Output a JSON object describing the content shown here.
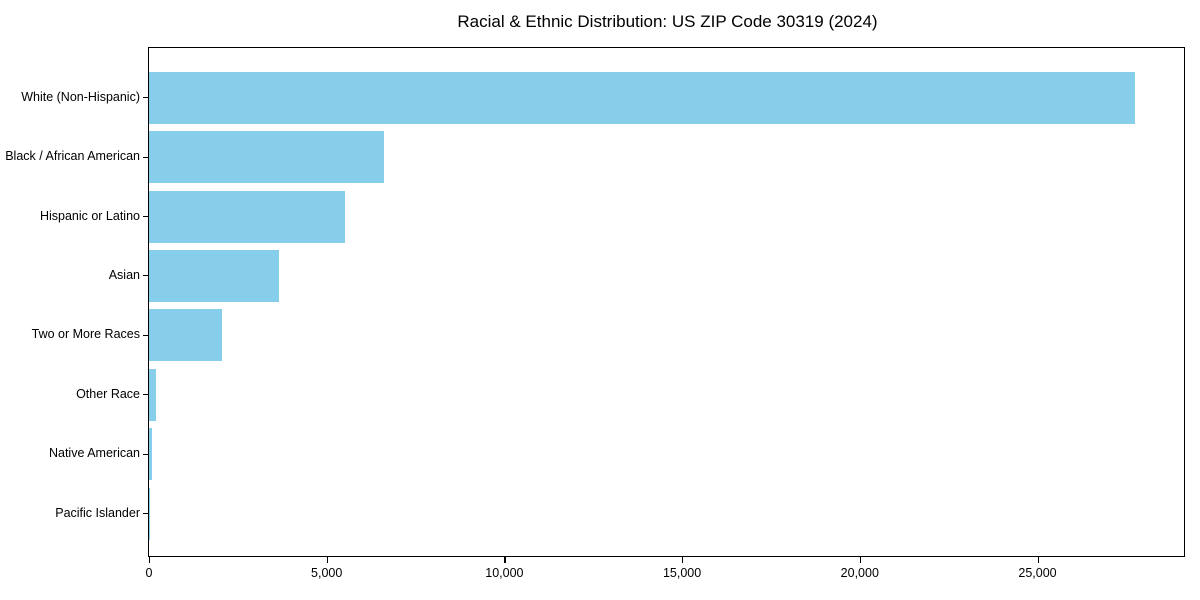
{
  "title": "Racial & Ethnic Distribution: US ZIP Code 30319 (2024)",
  "colors": {
    "bar": "#87CEEB",
    "axis": "#000000",
    "background": "#ffffff",
    "text": "#000000"
  },
  "chart_data": {
    "type": "bar",
    "orientation": "horizontal",
    "title": "Racial & Ethnic Distribution: US ZIP Code 30319 (2024)",
    "categories": [
      "White (Non-Hispanic)",
      "Black / African American",
      "Hispanic or Latino",
      "Asian",
      "Two or More Races",
      "Other Race",
      "Native American",
      "Pacific Islander"
    ],
    "values": [
      27750,
      6610,
      5520,
      3650,
      2050,
      190,
      90,
      15
    ],
    "xlabel": "",
    "ylabel": "",
    "xlim": [
      0,
      29150
    ],
    "x_ticks": [
      0,
      5000,
      10000,
      15000,
      20000,
      25000
    ],
    "x_tick_labels": [
      "0",
      "5,000",
      "10,000",
      "15,000",
      "20,000",
      "25,000"
    ],
    "bar_color": "#87CEEB",
    "grid": false,
    "legend": null
  }
}
